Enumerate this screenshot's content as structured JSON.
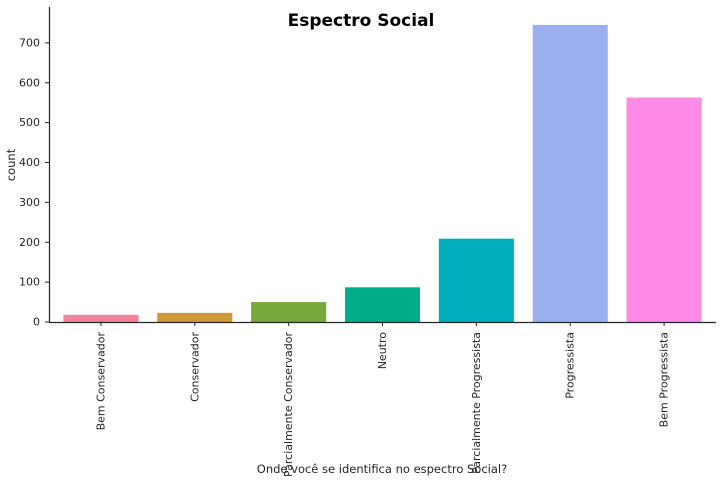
{
  "chart_data": {
    "type": "bar",
    "title": "Espectro Social",
    "xlabel": "Onde você se identifica no espectro Social?",
    "ylabel": "count",
    "ylim": [
      0,
      790
    ],
    "yticks": [
      0,
      100,
      200,
      300,
      400,
      500,
      600,
      700
    ],
    "grid": false,
    "categories": [
      "Bem Conservador",
      "Conservador",
      "Parcialmente Conservador",
      "Neutro",
      "Parcialmente Progressista",
      "Progressista",
      "Bem Progressista"
    ],
    "values": [
      18,
      23,
      50,
      87,
      209,
      745,
      563
    ],
    "colors": [
      "#f7819a",
      "#cc9a3b",
      "#77a83b",
      "#00ad8b",
      "#00adbd",
      "#9bb0ef",
      "#ff8be6"
    ]
  }
}
